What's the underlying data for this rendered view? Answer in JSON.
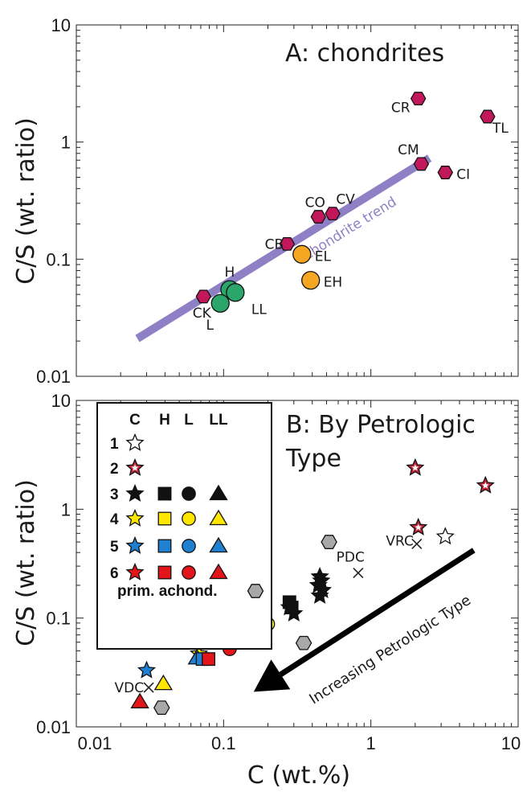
{
  "colors": {
    "chondrite_hex": "#c2185b",
    "ordinary_green": "#2aa66b",
    "enstatite_orange": "#f5a623",
    "trend_purple": "#8f80c6",
    "type4_yellow": "#ffe600",
    "type5_blue": "#1f7fd0",
    "type6_red": "#e1151a",
    "type2_red": "#c0273a",
    "achond_gray": "#a8a8a8"
  },
  "chart_data": [
    {
      "type": "scatter",
      "title": "A: chondrites",
      "xlabel": "",
      "ylabel": "C/S (wt. ratio)",
      "xscale": "log",
      "yscale": "log",
      "xlim": [
        0.01,
        10
      ],
      "ylim": [
        0.01,
        10
      ],
      "y_ticks": [
        "0.01",
        "0.1",
        "1",
        "10"
      ],
      "trend_line": {
        "label": "chondrite trend",
        "x": [
          0.026,
          2.5
        ],
        "y": [
          0.021,
          0.73
        ]
      },
      "points": [
        {
          "label": "CR",
          "x": 2.1,
          "y": 2.35,
          "marker": "hexagon",
          "color": "chondrite_hex"
        },
        {
          "label": "TL",
          "x": 6.2,
          "y": 1.65,
          "marker": "hexagon",
          "color": "chondrite_hex"
        },
        {
          "label": "CM",
          "x": 2.2,
          "y": 0.65,
          "marker": "hexagon",
          "color": "chondrite_hex"
        },
        {
          "label": "CI",
          "x": 3.2,
          "y": 0.55,
          "marker": "hexagon",
          "color": "chondrite_hex"
        },
        {
          "label": "CO",
          "x": 0.44,
          "y": 0.23,
          "marker": "hexagon",
          "color": "chondrite_hex"
        },
        {
          "label": "CV",
          "x": 0.55,
          "y": 0.245,
          "marker": "hexagon",
          "color": "chondrite_hex"
        },
        {
          "label": "CB",
          "x": 0.27,
          "y": 0.135,
          "marker": "hexagon",
          "color": "chondrite_hex"
        },
        {
          "label": "CK",
          "x": 0.073,
          "y": 0.048,
          "marker": "hexagon",
          "color": "chondrite_hex"
        },
        {
          "label": "EL",
          "x": 0.34,
          "y": 0.11,
          "marker": "circle",
          "color": "enstatite_orange"
        },
        {
          "label": "EH",
          "x": 0.39,
          "y": 0.066,
          "marker": "circle",
          "color": "enstatite_orange"
        },
        {
          "label": "H",
          "x": 0.11,
          "y": 0.055,
          "marker": "circle",
          "color": "ordinary_green"
        },
        {
          "label": "L",
          "x": 0.095,
          "y": 0.042,
          "marker": "circle",
          "color": "ordinary_green"
        },
        {
          "label": "LL",
          "x": 0.12,
          "y": 0.052,
          "marker": "circle",
          "color": "ordinary_green"
        }
      ]
    },
    {
      "type": "scatter",
      "title_lines": [
        "B: By Petrologic",
        "Type"
      ],
      "xlabel": "C (wt.%)",
      "ylabel": "C/S (wt. ratio)",
      "xscale": "log",
      "yscale": "log",
      "xlim": [
        0.01,
        10
      ],
      "ylim": [
        0.01,
        10
      ],
      "x_ticks": [
        "0.01",
        "0.1",
        "1",
        "10"
      ],
      "y_ticks": [
        "0.01",
        "0.1",
        "1",
        "10"
      ],
      "arrow": {
        "label": "Increasing Petrologic Type",
        "from": [
          5.0,
          0.42
        ],
        "to": [
          0.16,
          0.021
        ]
      },
      "legend": {
        "placement": "top-left",
        "columns": [
          "C",
          "H",
          "L",
          "LL"
        ],
        "rows": [
          {
            "type": "1",
            "symbols": [
              "star-open"
            ]
          },
          {
            "type": "2",
            "symbols": [
              "star-type2"
            ]
          },
          {
            "type": "3",
            "symbols": [
              "star-black",
              "square-black",
              "circle-black",
              "triangle-black"
            ]
          },
          {
            "type": "4",
            "symbols": [
              "star-yellow",
              "square-yellow",
              "circle-yellow",
              "triangle-yellow"
            ]
          },
          {
            "type": "5",
            "symbols": [
              "star-blue",
              "square-blue",
              "circle-blue",
              "triangle-blue"
            ]
          },
          {
            "type": "6",
            "symbols": [
              "star-red",
              "square-red",
              "circle-red",
              "triangle-red"
            ]
          }
        ],
        "footer": "prim. achond."
      },
      "crosses": [
        {
          "label": "PDC",
          "x": 0.82,
          "y": 0.26
        },
        {
          "label": "VRC",
          "x": 2.05,
          "y": 0.48
        },
        {
          "label": "VDC",
          "x": 0.031,
          "y": 0.023
        }
      ],
      "points": [
        {
          "group": "C2",
          "x": 2.0,
          "y": 2.4
        },
        {
          "group": "C2",
          "x": 6.0,
          "y": 1.65
        },
        {
          "group": "C2",
          "x": 2.1,
          "y": 0.68
        },
        {
          "group": "C1",
          "x": 3.2,
          "y": 0.56
        },
        {
          "group": "C3",
          "x": 0.45,
          "y": 0.24
        },
        {
          "group": "C3",
          "x": 0.46,
          "y": 0.22
        },
        {
          "group": "C3",
          "x": 0.44,
          "y": 0.2
        },
        {
          "group": "C3",
          "x": 0.47,
          "y": 0.18
        },
        {
          "group": "C3",
          "x": 0.45,
          "y": 0.16
        },
        {
          "group": "C3",
          "x": 0.3,
          "y": 0.11
        },
        {
          "group": "C3",
          "x": 0.28,
          "y": 0.125
        },
        {
          "group": "H3",
          "x": 0.28,
          "y": 0.14
        },
        {
          "group": "H3",
          "x": 0.29,
          "y": 0.125
        },
        {
          "group": "L4",
          "x": 0.2,
          "y": 0.088
        },
        {
          "group": "L5",
          "x": 0.12,
          "y": 0.063
        },
        {
          "group": "H4",
          "x": 0.11,
          "y": 0.061
        },
        {
          "group": "L6",
          "x": 0.11,
          "y": 0.052
        },
        {
          "group": "C4",
          "x": 0.068,
          "y": 0.047
        },
        {
          "group": "LL5",
          "x": 0.066,
          "y": 0.043
        },
        {
          "group": "H5",
          "x": 0.072,
          "y": 0.042
        },
        {
          "group": "H6",
          "x": 0.079,
          "y": 0.042
        },
        {
          "group": "C5",
          "x": 0.03,
          "y": 0.033
        },
        {
          "group": "LL4",
          "x": 0.039,
          "y": 0.025
        },
        {
          "group": "LL6",
          "x": 0.027,
          "y": 0.017
        },
        {
          "group": "ACH",
          "x": 0.038,
          "y": 0.015
        },
        {
          "group": "ACH",
          "x": 0.35,
          "y": 0.059
        },
        {
          "group": "ACH",
          "x": 0.52,
          "y": 0.5
        }
      ]
    }
  ]
}
